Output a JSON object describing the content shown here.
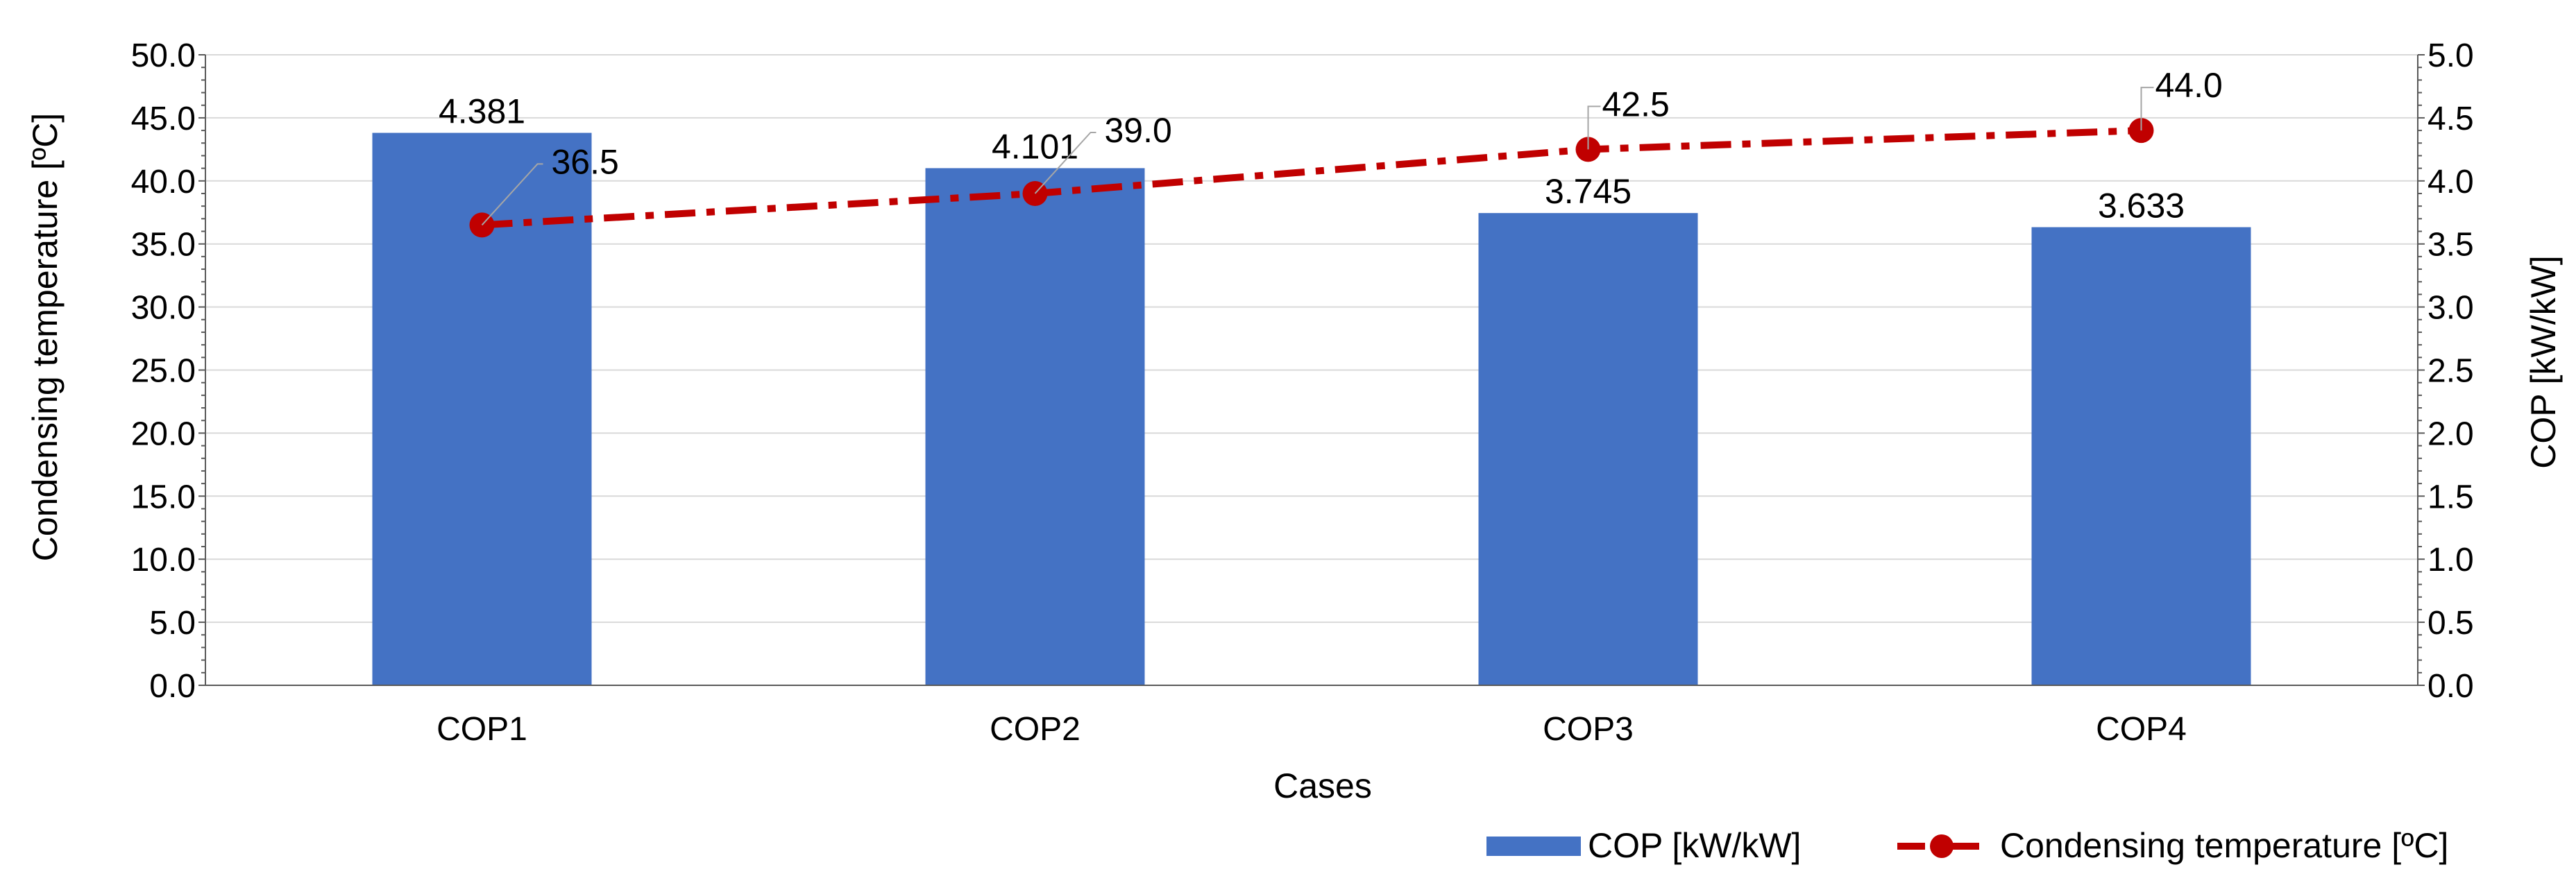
{
  "chart_data": {
    "type": "bar+line",
    "categories": [
      "COP1",
      "COP2",
      "COP3",
      "COP4"
    ],
    "xlabel": "Cases",
    "ylabel_left": "Condensing temperature [ºC]",
    "ylabel_right": "COP [kW/kW]",
    "ylim_left": [
      0,
      50
    ],
    "ylim_right": [
      0,
      5
    ],
    "yticks_left": [
      "0.0",
      "5.0",
      "10.0",
      "15.0",
      "20.0",
      "25.0",
      "30.0",
      "35.0",
      "40.0",
      "45.0",
      "50.0"
    ],
    "yticks_right": [
      "0.0",
      "0.5",
      "1.0",
      "1.5",
      "2.0",
      "2.5",
      "3.0",
      "3.5",
      "4.0",
      "4.5",
      "5.0"
    ],
    "grid": true,
    "legend_position": "bottom-right",
    "series": [
      {
        "name": "COP [kW/kW]",
        "type": "bar",
        "axis": "right",
        "color": "#4472C4",
        "values": [
          4.381,
          4.101,
          3.745,
          3.633
        ],
        "labels": [
          "4.381",
          "4.101",
          "3.745",
          "3.633"
        ]
      },
      {
        "name": "Condensing temperature [ºC]",
        "type": "line",
        "axis": "left",
        "color": "#C00000",
        "line_style": "dash-dot",
        "values": [
          36.5,
          39.0,
          42.5,
          44.0
        ],
        "labels": [
          "36.5",
          "39.0",
          "42.5",
          "44.0"
        ]
      }
    ]
  }
}
